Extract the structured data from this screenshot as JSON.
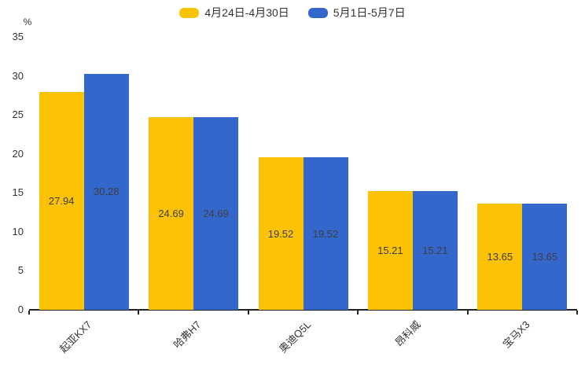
{
  "legend": {
    "items": [
      {
        "label": "4月24日-4月30日",
        "color": "#FCC306"
      },
      {
        "label": "5月1日-5月7日",
        "color": "#3467CB"
      }
    ]
  },
  "chart_data": {
    "type": "bar",
    "title": "",
    "categories": [
      "起亚KX7",
      "哈弗H7",
      "奥迪Q5L",
      "昂科威",
      "宝马X3"
    ],
    "series": [
      {
        "name": "4月24日-4月30日",
        "color": "#FCC306",
        "values": [
          27.94,
          24.69,
          19.52,
          15.21,
          13.65
        ]
      },
      {
        "name": "5月1日-5月7日",
        "color": "#3467CB",
        "values": [
          30.28,
          24.69,
          19.52,
          15.21,
          13.65
        ]
      }
    ],
    "xlabel": "",
    "ylabel": "%",
    "ylim": [
      0,
      35
    ],
    "yticks": [
      0,
      5,
      10,
      15,
      20,
      25,
      30,
      35
    ],
    "grid": false,
    "legend_position": "top",
    "value_labels": "inside-center",
    "value_label_color": "#3d3d3d",
    "axis_color": "#222222",
    "text_color": "#333333"
  }
}
